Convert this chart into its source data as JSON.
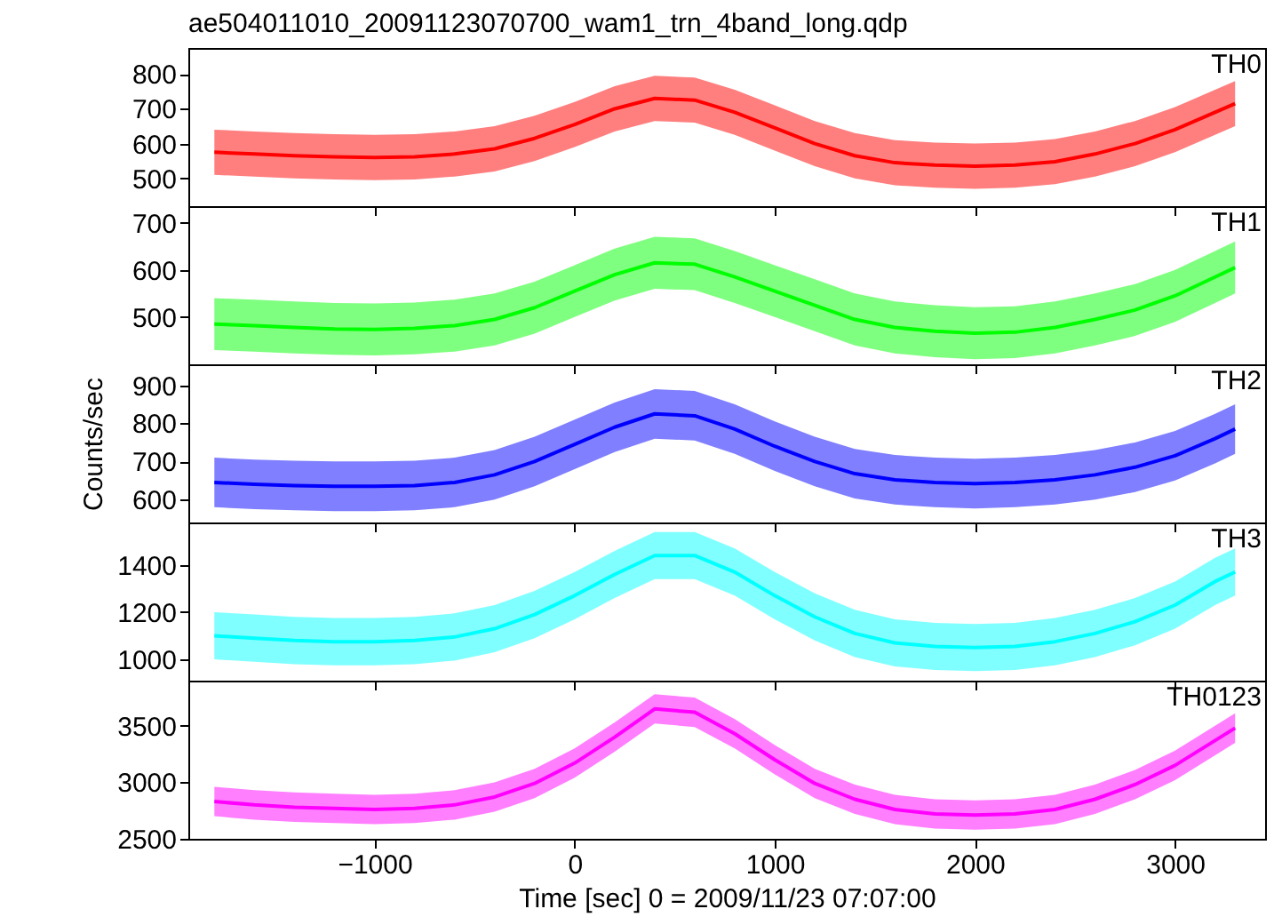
{
  "chart_data": [
    {
      "type": "line",
      "title": "ae504011010_20091123070700_wam1_trn_4band_long.qdp",
      "x": [
        -1800,
        -1600,
        -1400,
        -1200,
        -1000,
        -800,
        -600,
        -400,
        -200,
        0,
        200,
        400,
        600,
        800,
        1000,
        1200,
        1400,
        1600,
        1800,
        2000,
        2200,
        2400,
        2600,
        2800,
        3000,
        3200,
        3300
      ],
      "xlim": [
        -1930,
        3450
      ],
      "xticks": [
        {
          "value": -1000,
          "label": null
        },
        {
          "value": 0,
          "label": null
        },
        {
          "value": 1000,
          "label": null
        },
        {
          "value": 2000,
          "label": null
        },
        {
          "value": 3000,
          "label": null
        }
      ],
      "ylim": [
        420,
        875
      ],
      "yticks": [
        500,
        600,
        700,
        800
      ],
      "tick_labels": "y",
      "series": [
        {
          "name": "TH0",
          "color": "#ff0000",
          "values": [
            575,
            570,
            565,
            562,
            560,
            562,
            570,
            585,
            615,
            655,
            700,
            730,
            725,
            690,
            645,
            600,
            565,
            545,
            538,
            535,
            538,
            548,
            570,
            600,
            640,
            690,
            715
          ],
          "lower": [
            510,
            505,
            500,
            497,
            495,
            497,
            505,
            520,
            550,
            590,
            635,
            665,
            660,
            625,
            580,
            535,
            500,
            480,
            473,
            470,
            473,
            483,
            505,
            535,
            575,
            625,
            650
          ],
          "upper": [
            640,
            635,
            630,
            627,
            625,
            627,
            635,
            650,
            680,
            720,
            765,
            795,
            790,
            755,
            710,
            665,
            630,
            610,
            603,
            600,
            603,
            613,
            635,
            665,
            705,
            755,
            780
          ]
        }
      ]
    },
    {
      "type": "line",
      "x": [
        -1800,
        -1600,
        -1400,
        -1200,
        -1000,
        -800,
        -600,
        -400,
        -200,
        0,
        200,
        400,
        600,
        800,
        1000,
        1200,
        1400,
        1600,
        1800,
        2000,
        2200,
        2400,
        2600,
        2800,
        3000,
        3200,
        3300
      ],
      "xlim": [
        -1930,
        3450
      ],
      "xticks": [
        {
          "value": -1000,
          "label": null
        },
        {
          "value": 0,
          "label": null
        },
        {
          "value": 1000,
          "label": null
        },
        {
          "value": 2000,
          "label": null
        },
        {
          "value": 3000,
          "label": null
        }
      ],
      "ylim": [
        400,
        735
      ],
      "yticks": [
        500,
        600,
        700
      ],
      "tick_labels": "y",
      "series": [
        {
          "name": "TH1",
          "color": "#00ff00",
          "values": [
            485,
            482,
            478,
            475,
            474,
            476,
            482,
            495,
            520,
            555,
            590,
            615,
            612,
            585,
            555,
            525,
            495,
            478,
            470,
            466,
            468,
            478,
            495,
            515,
            545,
            585,
            605
          ],
          "lower": [
            430,
            427,
            423,
            420,
            419,
            421,
            427,
            440,
            465,
            500,
            535,
            560,
            557,
            530,
            500,
            470,
            440,
            423,
            415,
            411,
            413,
            423,
            440,
            460,
            490,
            530,
            550
          ],
          "upper": [
            540,
            537,
            533,
            530,
            529,
            531,
            537,
            550,
            575,
            610,
            645,
            670,
            667,
            640,
            610,
            580,
            550,
            533,
            525,
            521,
            523,
            533,
            550,
            570,
            600,
            640,
            660
          ]
        }
      ]
    },
    {
      "type": "line",
      "ylabel": "Counts/sec",
      "x": [
        -1800,
        -1600,
        -1400,
        -1200,
        -1000,
        -800,
        -600,
        -400,
        -200,
        0,
        200,
        400,
        600,
        800,
        1000,
        1200,
        1400,
        1600,
        1800,
        2000,
        2200,
        2400,
        2600,
        2800,
        3000,
        3200,
        3300
      ],
      "xlim": [
        -1930,
        3450
      ],
      "xticks": [
        {
          "value": -1000,
          "label": null
        },
        {
          "value": 0,
          "label": null
        },
        {
          "value": 1000,
          "label": null
        },
        {
          "value": 2000,
          "label": null
        },
        {
          "value": 3000,
          "label": null
        }
      ],
      "ylim": [
        540,
        955
      ],
      "yticks": [
        600,
        700,
        800,
        900
      ],
      "tick_labels": "y",
      "series": [
        {
          "name": "TH2",
          "color": "#0000ff",
          "values": [
            645,
            640,
            637,
            635,
            635,
            637,
            645,
            665,
            700,
            745,
            790,
            825,
            820,
            785,
            740,
            700,
            668,
            652,
            645,
            642,
            645,
            652,
            665,
            685,
            715,
            760,
            785
          ],
          "lower": [
            580,
            575,
            572,
            570,
            570,
            572,
            580,
            600,
            635,
            680,
            725,
            760,
            755,
            720,
            675,
            635,
            603,
            587,
            580,
            577,
            580,
            587,
            600,
            620,
            650,
            695,
            720
          ],
          "upper": [
            710,
            705,
            702,
            700,
            700,
            702,
            710,
            730,
            765,
            810,
            855,
            890,
            885,
            850,
            805,
            765,
            733,
            717,
            710,
            707,
            710,
            717,
            730,
            750,
            780,
            825,
            850
          ]
        }
      ]
    },
    {
      "type": "line",
      "x": [
        -1800,
        -1600,
        -1400,
        -1200,
        -1000,
        -800,
        -600,
        -400,
        -200,
        0,
        200,
        400,
        600,
        800,
        1000,
        1200,
        1400,
        1600,
        1800,
        2000,
        2200,
        2400,
        2600,
        2800,
        3000,
        3200,
        3300
      ],
      "xlim": [
        -1930,
        3450
      ],
      "xticks": [
        {
          "value": -1000,
          "label": null
        },
        {
          "value": 0,
          "label": null
        },
        {
          "value": 1000,
          "label": null
        },
        {
          "value": 2000,
          "label": null
        },
        {
          "value": 3000,
          "label": null
        }
      ],
      "ylim": [
        910,
        1580
      ],
      "yticks": [
        1000,
        1200,
        1400
      ],
      "tick_labels": "y",
      "series": [
        {
          "name": "TH3",
          "color": "#00ffff",
          "values": [
            1100,
            1090,
            1080,
            1075,
            1075,
            1080,
            1095,
            1130,
            1190,
            1270,
            1360,
            1440,
            1440,
            1370,
            1270,
            1180,
            1110,
            1070,
            1055,
            1050,
            1055,
            1075,
            1110,
            1160,
            1230,
            1330,
            1370
          ],
          "lower": [
            1000,
            990,
            980,
            975,
            975,
            980,
            995,
            1030,
            1090,
            1170,
            1260,
            1340,
            1340,
            1270,
            1170,
            1080,
            1010,
            970,
            955,
            950,
            955,
            975,
            1010,
            1060,
            1130,
            1230,
            1270
          ],
          "upper": [
            1200,
            1190,
            1180,
            1175,
            1175,
            1180,
            1195,
            1230,
            1290,
            1370,
            1460,
            1540,
            1540,
            1470,
            1370,
            1280,
            1210,
            1170,
            1155,
            1150,
            1155,
            1175,
            1210,
            1260,
            1330,
            1430,
            1470
          ]
        }
      ]
    },
    {
      "type": "line",
      "xlabel": "Time [sec] 0 = 2009/11/23 07:07:00",
      "x": [
        -1800,
        -1600,
        -1400,
        -1200,
        -1000,
        -800,
        -600,
        -400,
        -200,
        0,
        200,
        400,
        600,
        800,
        1000,
        1200,
        1400,
        1600,
        1800,
        2000,
        2200,
        2400,
        2600,
        2800,
        3000,
        3200,
        3300
      ],
      "xlim": [
        -1930,
        3450
      ],
      "xticks": [
        -1000,
        0,
        1000,
        2000,
        3000
      ],
      "ylim": [
        2500,
        3900
      ],
      "yticks": [
        2500,
        3000,
        3500
      ],
      "series": [
        {
          "name": "TH0123",
          "color": "#ff00ff",
          "values": [
            2830,
            2800,
            2780,
            2770,
            2760,
            2770,
            2800,
            2870,
            2990,
            3170,
            3400,
            3650,
            3620,
            3430,
            3200,
            2990,
            2850,
            2760,
            2720,
            2710,
            2720,
            2760,
            2850,
            2980,
            3150,
            3370,
            3480
          ],
          "lower": [
            2700,
            2670,
            2650,
            2640,
            2630,
            2640,
            2670,
            2740,
            2860,
            3040,
            3270,
            3520,
            3490,
            3300,
            3070,
            2860,
            2720,
            2630,
            2590,
            2580,
            2590,
            2630,
            2720,
            2850,
            3020,
            3240,
            3350
          ],
          "upper": [
            2960,
            2930,
            2910,
            2900,
            2890,
            2900,
            2930,
            3000,
            3120,
            3300,
            3530,
            3780,
            3750,
            3560,
            3330,
            3120,
            2980,
            2890,
            2850,
            2840,
            2850,
            2890,
            2980,
            3110,
            3280,
            3500,
            3610
          ]
        }
      ]
    }
  ]
}
